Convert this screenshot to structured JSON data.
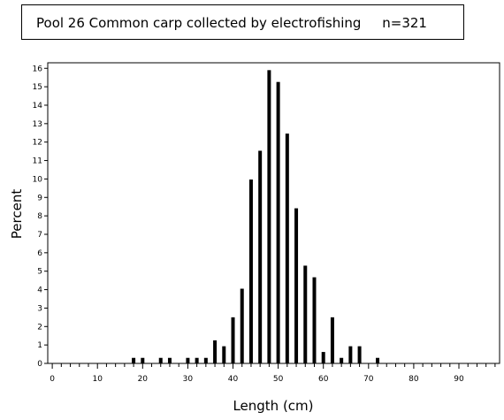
{
  "chart_data": {
    "type": "bar",
    "title": "Pool 26 Common carp collected by electrofishing     n=321",
    "xlabel": "Length (cm)",
    "ylabel": "Percent",
    "xlim": [
      -1,
      99
    ],
    "ylim": [
      0,
      16.3
    ],
    "x_ticks": [
      0,
      10,
      20,
      30,
      40,
      50,
      60,
      70,
      80,
      90
    ],
    "y_ticks": [
      0,
      1,
      2,
      3,
      4,
      5,
      6,
      7,
      8,
      9,
      10,
      11,
      12,
      13,
      14,
      15,
      16
    ],
    "x_minor_step": 2,
    "grid": false,
    "bar_color": "#000000",
    "x": [
      18,
      20,
      24,
      26,
      30,
      32,
      34,
      36,
      38,
      40,
      42,
      44,
      46,
      48,
      50,
      52,
      54,
      56,
      58,
      60,
      62,
      64,
      66,
      68,
      72
    ],
    "values": [
      0.3,
      0.3,
      0.3,
      0.3,
      0.3,
      0.3,
      0.3,
      1.25,
      0.93,
      2.5,
      4.05,
      9.97,
      11.53,
      15.9,
      15.26,
      12.46,
      8.41,
      5.3,
      4.67,
      0.62,
      2.5,
      0.3,
      0.93,
      0.93,
      0.3
    ]
  }
}
